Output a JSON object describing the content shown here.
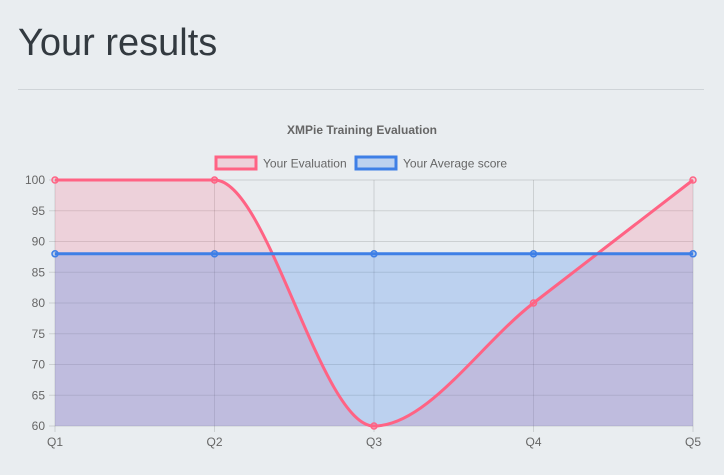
{
  "page": {
    "title": "Your results"
  },
  "chart_data": {
    "type": "line",
    "title": "XMPie Training Evaluation",
    "categories": [
      "Q1",
      "Q2",
      "Q3",
      "Q4",
      "Q5"
    ],
    "yticks": [
      100,
      95,
      90,
      85,
      80,
      75,
      70,
      65,
      60
    ],
    "ylim": [
      60,
      100
    ],
    "grid": true,
    "legend_position": "top-center",
    "series": [
      {
        "name": "Your Evaluation",
        "values": [
          100,
          100,
          60,
          80,
          100
        ],
        "color": "#ff6384",
        "fill": "rgba(255,99,132,0.2)",
        "smooth": true
      },
      {
        "name": "Your Average score",
        "values": [
          88,
          88,
          88,
          88,
          88
        ],
        "color": "#3e7fe6",
        "fill": "rgba(54,126,235,0.25)",
        "smooth": false
      }
    ]
  }
}
